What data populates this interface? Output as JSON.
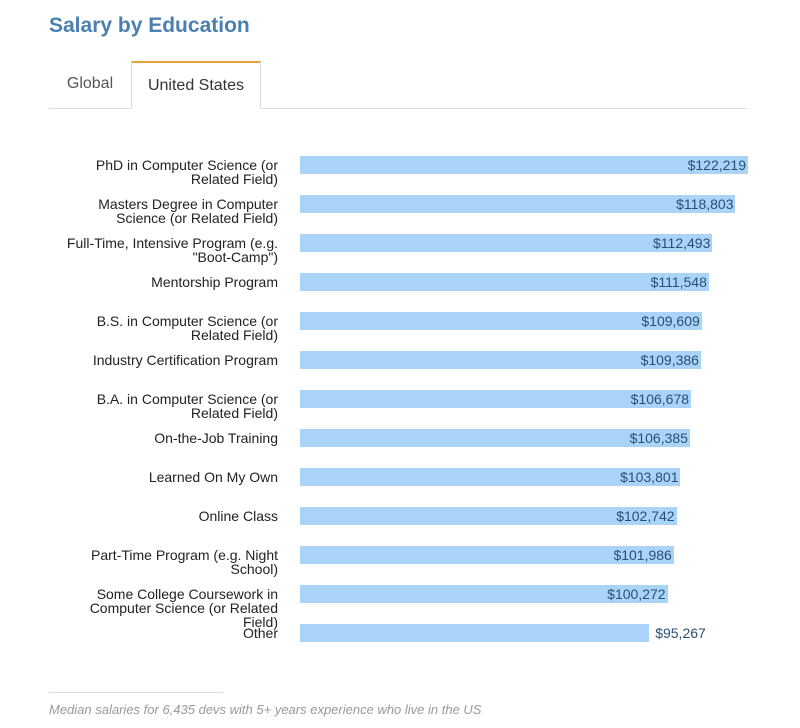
{
  "header": {
    "title": "Salary by Education"
  },
  "tabs": [
    {
      "label": "Global"
    },
    {
      "label": "United States"
    }
  ],
  "footnote": "Median salaries for 6,435 devs with 5+ years experience who live in the US",
  "chart_data": {
    "type": "bar",
    "orientation": "horizontal",
    "title": "",
    "xlabel": "",
    "ylabel": "",
    "bar_color": "#a9d4f7",
    "categories": [
      [
        "PhD in Computer Science (or",
        "Related Field)"
      ],
      [
        "Masters Degree in Computer",
        "Science (or Related Field)"
      ],
      [
        "Full-Time, Intensive Program (e.g.",
        "\"Boot-Camp\")"
      ],
      [
        "Mentorship Program"
      ],
      [
        "B.S. in Computer Science (or",
        "Related Field)"
      ],
      [
        "Industry Certification Program"
      ],
      [
        "B.A. in Computer Science (or",
        "Related Field)"
      ],
      [
        "On-the-Job Training"
      ],
      [
        "Learned On My Own"
      ],
      [
        "Online Class"
      ],
      [
        "Part-Time Program (e.g. Night",
        "School)"
      ],
      [
        "Some College Coursework in",
        "Computer Science (or Related",
        "Field)"
      ],
      [
        "Other"
      ]
    ],
    "values": [
      122219,
      118803,
      112493,
      111548,
      109609,
      109386,
      106678,
      106385,
      103801,
      102742,
      101986,
      100272,
      95267
    ],
    "value_labels": [
      "$122,219",
      "$118,803",
      "$112,493",
      "$111,548",
      "$109,609",
      "$109,386",
      "$106,678",
      "$106,385",
      "$103,801",
      "$102,742",
      "$101,986",
      "$100,272",
      "$95,267"
    ]
  }
}
